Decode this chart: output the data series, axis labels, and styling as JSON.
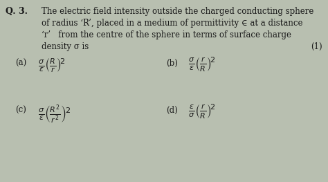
{
  "bg_color": "#b8bfb0",
  "text_color": "#1a1a1a",
  "question_label": "Q. 3.",
  "line1": "The electric field intensity outside the charged conducting sphere",
  "line2": "of radius ‘R’, placed in a medium of permittivity ∈ at a distance",
  "line3": "‘r’   from the centre of the sphere in terms of surface charge",
  "line4": "density σ is",
  "question_number": "(1)",
  "opt_a": "(a)",
  "opt_b": "(b)",
  "opt_c": "(c)",
  "opt_d": "(d)",
  "formula_a": "$\\frac{\\sigma}{\\epsilon}\\left(\\frac{R}{r}\\right)^{\\!2}$",
  "formula_b": "$\\frac{\\sigma}{\\epsilon}\\left(\\frac{r}{R}\\right)^{\\!2}$",
  "formula_c": "$\\frac{\\sigma}{\\epsilon}\\left(\\frac{R^{2}}{r^{2}}\\right)^{\\!2}$",
  "formula_d": "$\\frac{\\epsilon}{\\sigma}\\left(\\frac{r}{R}\\right)^{\\!2}$",
  "fs_text": 8.5,
  "fs_bold": 9.0,
  "fs_formula": 11.5,
  "fs_label": 8.5
}
